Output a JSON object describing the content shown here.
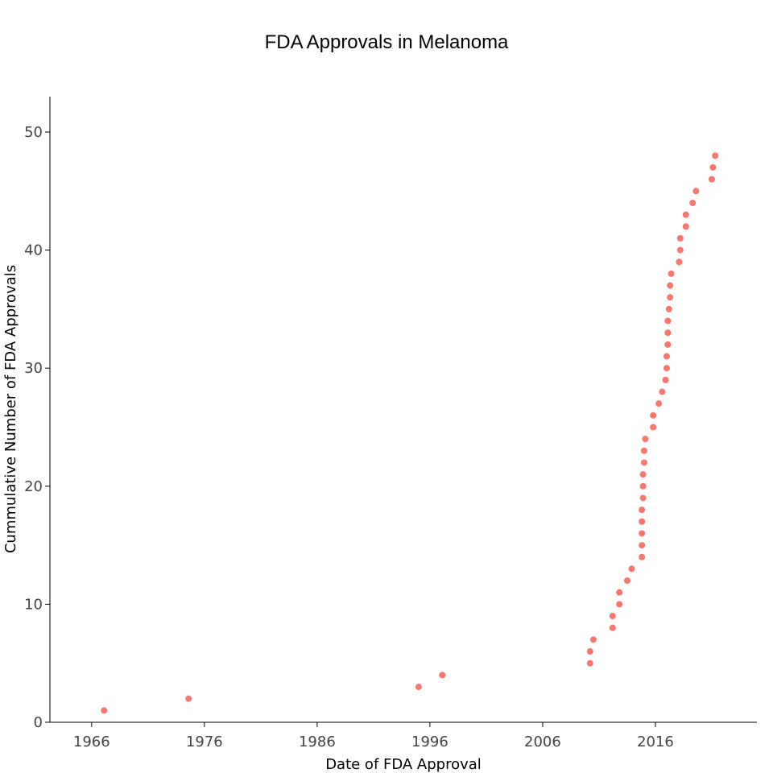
{
  "chart_data": {
    "type": "scatter",
    "title": "FDA Approvals in Melanoma",
    "xlabel": "Date of FDA Approval",
    "ylabel": "Cummulative Number of FDA Approvals",
    "xlim": [
      1962.3,
      2025.0
    ],
    "ylim": [
      0,
      53
    ],
    "x_ticks": [
      1966,
      1976,
      1986,
      1996,
      2006,
      2016
    ],
    "y_ticks": [
      0,
      10,
      20,
      30,
      40,
      50
    ],
    "grid": false,
    "legend": "none",
    "marker_color": "#F8766D",
    "series": [
      {
        "x": [
          1967.1,
          1974.6,
          1995.0,
          1997.1,
          2010.2,
          2010.2,
          2010.5,
          2012.2,
          2012.2,
          2012.8,
          2012.8,
          2013.5,
          2013.9,
          2014.8,
          2014.8,
          2014.8,
          2014.8,
          2014.8,
          2014.9,
          2014.9,
          2014.9,
          2015.0,
          2015.0,
          2015.1,
          2015.8,
          2015.8,
          2016.3,
          2016.6,
          2016.9,
          2017.0,
          2017.0,
          2017.1,
          2017.1,
          2017.1,
          2017.2,
          2017.3,
          2017.3,
          2017.4,
          2018.1,
          2018.2,
          2018.2,
          2018.7,
          2018.7,
          2019.3,
          2019.6,
          2021.0,
          2021.1,
          2021.3
        ],
        "y": [
          1,
          2,
          3,
          4,
          5,
          6,
          7,
          8,
          9,
          10,
          11,
          12,
          13,
          14,
          15,
          16,
          17,
          18,
          19,
          20,
          21,
          22,
          23,
          24,
          25,
          26,
          27,
          28,
          29,
          30,
          31,
          32,
          33,
          34,
          35,
          36,
          37,
          38,
          39,
          40,
          41,
          42,
          43,
          44,
          45,
          46,
          47,
          48
        ]
      }
    ]
  }
}
